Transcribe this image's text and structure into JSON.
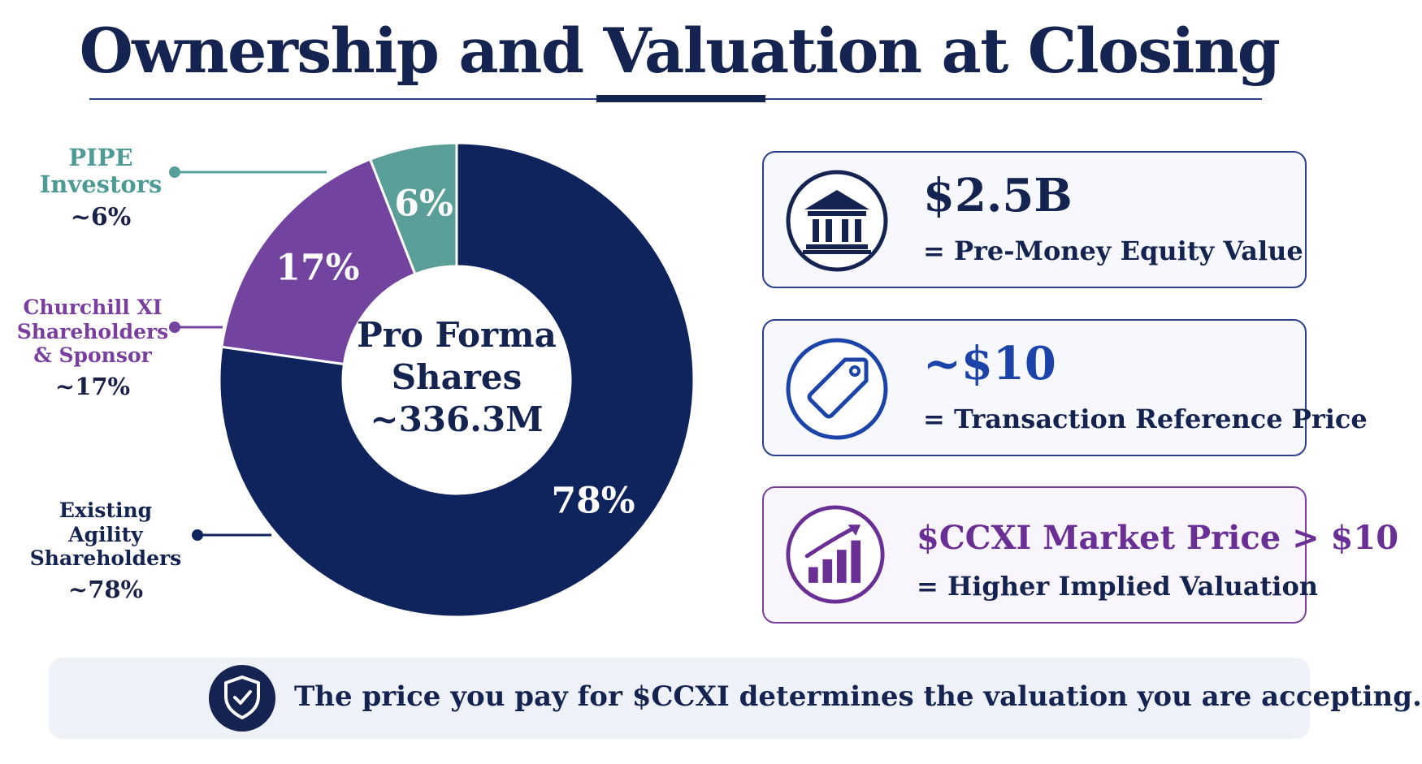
{
  "title": "Ownership and Valuation at Closing",
  "chart_data": {
    "type": "pie",
    "donut": true,
    "center_label_lines": [
      "Pro Forma",
      "Shares",
      "~336.3M"
    ],
    "slices": [
      {
        "name": "Existing Agility Shareholders",
        "value": 78,
        "slice_label": "78%",
        "callout_pct": "~78%",
        "color": "#0f235c"
      },
      {
        "name": "Churchill XI Shareholders & Sponsor",
        "value": 17,
        "slice_label": "17%",
        "callout_pct": "~17%",
        "color": "#7244a0"
      },
      {
        "name": "PIPE Investors",
        "value": 6,
        "slice_label": "6%",
        "callout_pct": "~6%",
        "color": "#5a9e98"
      }
    ]
  },
  "callouts": {
    "pipe": {
      "lines": [
        "PIPE",
        "Investors"
      ],
      "pct": "~6%"
    },
    "churchill": {
      "lines": [
        "Churchill XI",
        "Shareholders",
        "& Sponsor"
      ],
      "pct": "~17%"
    },
    "agility": {
      "lines": [
        "Existing Agility",
        "Shareholders"
      ],
      "pct": "~78%"
    }
  },
  "cards": [
    {
      "value": "$2.5B",
      "caption": "= Pre-Money Equity Value",
      "icon": "bank-icon"
    },
    {
      "value": "~$10",
      "caption": "= Transaction Reference Price",
      "icon": "price-tag-icon"
    },
    {
      "value": "$CCXI Market Price > $10",
      "caption": "= Higher Implied Valuation",
      "icon": "growth-chart-icon"
    }
  ],
  "banner": {
    "message": "The price you pay for $CCXI determines the valuation you are accepting.",
    "icon": "shield-check-icon"
  },
  "colors": {
    "navy": "#0f235c",
    "purple": "#7244a0",
    "teal": "#5a9e98",
    "blue": "#1c44a8"
  }
}
